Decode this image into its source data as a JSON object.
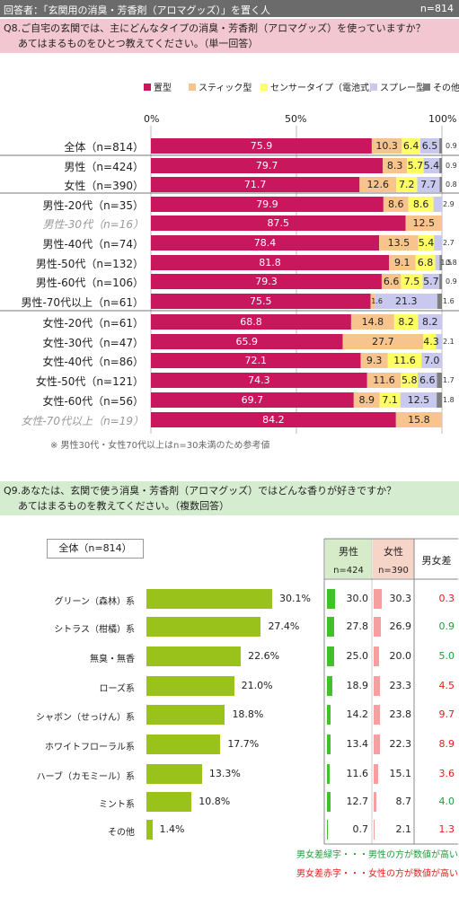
{
  "header": {
    "respondent": "回答者：「玄関用の消臭・芳香剤（アロマグッズ）」を置く人",
    "n": "n=814"
  },
  "q8": {
    "question_line1": "Q8.ご自宅の玄関では、主にどんなタイプの消臭・芳香剤（アロマグッズ）を使っていますか？",
    "question_line2": "あてはまるものをひとつ教えてください。（単一回答）",
    "legend": [
      "置型",
      "スティック型",
      "センサータイプ（電池式）",
      "スプレー型",
      "その他"
    ],
    "axis": [
      "0%",
      "50%",
      "100%"
    ],
    "note": "※ 男性30代・女性70代以上はn=30未満のため参考値"
  },
  "q9": {
    "question_line1": "Q9.あなたは、玄関で使う消臭・芳香剤（アロマグッズ）ではどんな香りが好きですか？",
    "question_line2": "あてはまるものを教えてください。（複数回答）",
    "total_label": "全体（n=814）",
    "unit": "(%)",
    "table_headers": {
      "male": "男性",
      "male_n": "n=424",
      "female": "女性",
      "female_n": "n=390",
      "diff": "男女差"
    },
    "legend_green": "男女差緑字・・・男性の方が数値が高い",
    "legend_red": "男女差赤字・・・女性の方が数値が高い"
  },
  "colors": {
    "placement": "#c8175d",
    "stick": "#f8c48e",
    "sensor": "#ffff66",
    "spray": "#c9c9f0",
    "other": "#7f7f7f",
    "q9bar": "#99c31a",
    "male": "#43c12b",
    "female": "#f4a0a0",
    "green": "#1e9e3a",
    "red": "#e0201a"
  },
  "chart_data": [
    {
      "type": "bar",
      "orientation": "horizontal-stacked",
      "xlim": [
        0,
        100
      ],
      "categories": [
        "全体（n=814）",
        "男性（n=424）",
        "女性（n=390）",
        "男性-20代（n=35）",
        "男性-30代（n=16）",
        "男性-40代（n=74）",
        "男性-50代（n=132）",
        "男性-60代（n=106）",
        "男性-70代以上（n=61）",
        "女性-20代（n=61）",
        "女性-30代（n=47）",
        "女性-40代（n=86）",
        "女性-50代（n=121）",
        "女性-60代（n=56）",
        "女性-70代以上（n=19）"
      ],
      "reference_rows": [
        4,
        14
      ],
      "series": [
        {
          "name": "置型",
          "values": [
            75.9,
            79.7,
            71.7,
            79.9,
            87.5,
            78.4,
            81.8,
            79.3,
            75.5,
            68.8,
            65.9,
            72.1,
            74.3,
            69.7,
            84.2
          ]
        },
        {
          "name": "スティック型",
          "values": [
            10.3,
            8.3,
            12.6,
            8.6,
            12.5,
            13.5,
            9.1,
            6.6,
            1.6,
            14.8,
            27.7,
            9.3,
            11.6,
            8.9,
            15.8
          ]
        },
        {
          "name": "センサータイプ（電池式）",
          "values": [
            6.4,
            5.7,
            7.2,
            8.6,
            0,
            5.4,
            6.8,
            7.5,
            0,
            8.2,
            4.3,
            11.6,
            5.8,
            7.1,
            0
          ]
        },
        {
          "name": "スプレー型",
          "values": [
            6.5,
            5.4,
            7.7,
            2.9,
            0,
            2.7,
            1.5,
            5.7,
            21.3,
            8.2,
            2.1,
            7.0,
            6.6,
            12.5,
            0
          ]
        },
        {
          "name": "その他",
          "values": [
            0.9,
            0.9,
            0.8,
            0,
            0,
            0,
            0.8,
            0.9,
            1.6,
            0,
            0,
            0,
            1.7,
            1.8,
            0
          ]
        }
      ],
      "labels": [
        [
          "75.9",
          "10.3",
          "6.4",
          "6.5",
          "0.9"
        ],
        [
          "79.7",
          "8.3",
          "5.7",
          "5.4",
          "0.9"
        ],
        [
          "71.7",
          "12.6",
          "7.2",
          "7.7",
          "0.8"
        ],
        [
          "79.9",
          "8.6",
          "8.6",
          "2.9",
          ""
        ],
        [
          "87.5",
          "12.5",
          "",
          "",
          ""
        ],
        [
          "78.4",
          "13.5",
          "5.4",
          "2.7",
          ""
        ],
        [
          "81.8",
          "9.1",
          "6.8",
          "1.5",
          "0.8"
        ],
        [
          "79.3",
          "6.6",
          "7.5",
          "5.7",
          "0.9"
        ],
        [
          "75.5",
          "1.6",
          "",
          "21.3",
          "1.6"
        ],
        [
          "68.8",
          "14.8",
          "8.2",
          "8.2",
          ""
        ],
        [
          "65.9",
          "27.7",
          "4.3",
          "2.1",
          ""
        ],
        [
          "72.1",
          "9.3",
          "11.6",
          "7.0",
          ""
        ],
        [
          "74.3",
          "11.6",
          "5.8",
          "6.6",
          "1.7"
        ],
        [
          "69.7",
          "8.9",
          "7.1",
          "12.5",
          "1.8"
        ],
        [
          "84.2",
          "15.8",
          "",
          "",
          ""
        ]
      ]
    },
    {
      "type": "bar",
      "orientation": "horizontal",
      "categories": [
        "グリーン（森林）系",
        "シトラス（柑橘）系",
        "無臭・無香",
        "ローズ系",
        "シャボン（せっけん）系",
        "ホワイトフローラル系",
        "ハーブ（カモミール）系",
        "ミント系",
        "その他"
      ],
      "values": [
        30.1,
        27.4,
        22.6,
        21.0,
        18.8,
        17.7,
        13.3,
        10.8,
        1.4
      ],
      "value_labels": [
        "30.1%",
        "27.4%",
        "22.6%",
        "21.0%",
        "18.8%",
        "17.7%",
        "13.3%",
        "10.8%",
        "1.4%"
      ],
      "male": [
        30.0,
        27.8,
        25.0,
        18.9,
        14.2,
        13.4,
        11.6,
        12.7,
        0.7
      ],
      "female": [
        30.3,
        26.9,
        20.0,
        23.3,
        23.8,
        22.3,
        15.1,
        8.7,
        2.1
      ],
      "diff": [
        0.3,
        0.9,
        5.0,
        4.5,
        9.7,
        8.9,
        3.6,
        4.0,
        1.3
      ],
      "diff_labels": [
        "0.3",
        "0.9",
        "5.0",
        "4.5",
        "9.7",
        "8.9",
        "3.6",
        "4.0",
        "1.3"
      ],
      "diff_color": [
        "red",
        "green",
        "green",
        "red",
        "red",
        "red",
        "red",
        "green",
        "red"
      ]
    }
  ]
}
